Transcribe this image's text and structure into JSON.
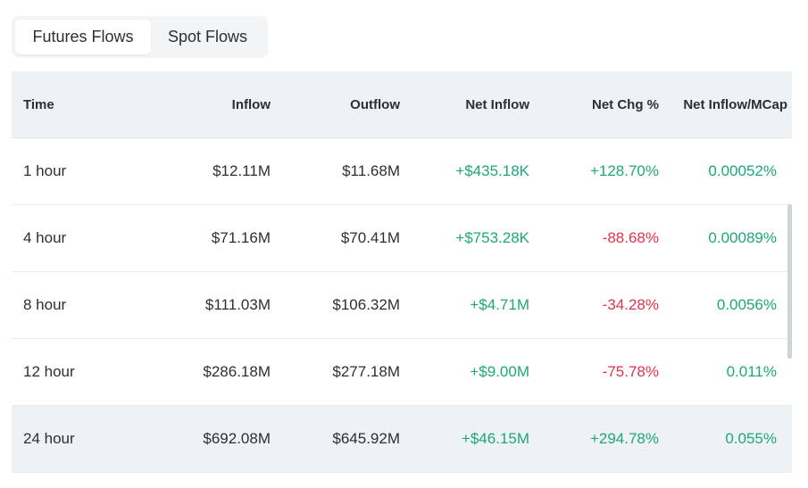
{
  "tabs": [
    {
      "label": "Futures Flows",
      "active": true
    },
    {
      "label": "Spot Flows",
      "active": false
    }
  ],
  "table": {
    "headers": {
      "time": "Time",
      "inflow": "Inflow",
      "outflow": "Outflow",
      "net_inflow": "Net Inflow",
      "net_chg": "Net Chg %",
      "net_mcap": "Net Inflow/MCap"
    },
    "rows": [
      {
        "time": "1 hour",
        "inflow": "$12.11M",
        "outflow": "$11.68M",
        "net_inflow": "+$435.18K",
        "net_chg": "+128.70%",
        "net_mcap": "0.00052%"
      },
      {
        "time": "4 hour",
        "inflow": "$71.16M",
        "outflow": "$70.41M",
        "net_inflow": "+$753.28K",
        "net_chg": "-88.68%",
        "net_mcap": "0.00089%"
      },
      {
        "time": "8 hour",
        "inflow": "$111.03M",
        "outflow": "$106.32M",
        "net_inflow": "+$4.71M",
        "net_chg": "-34.28%",
        "net_mcap": "0.0056%"
      },
      {
        "time": "12 hour",
        "inflow": "$286.18M",
        "outflow": "$277.18M",
        "net_inflow": "+$9.00M",
        "net_chg": "-75.78%",
        "net_mcap": "0.011%"
      },
      {
        "time": "24 hour",
        "inflow": "$692.08M",
        "outflow": "$645.92M",
        "net_inflow": "+$46.15M",
        "net_chg": "+294.78%",
        "net_mcap": "0.055%"
      }
    ]
  },
  "colors": {
    "positive": "#1fa67a",
    "negative": "#e0334c",
    "header_bg": "#eff2f5"
  }
}
